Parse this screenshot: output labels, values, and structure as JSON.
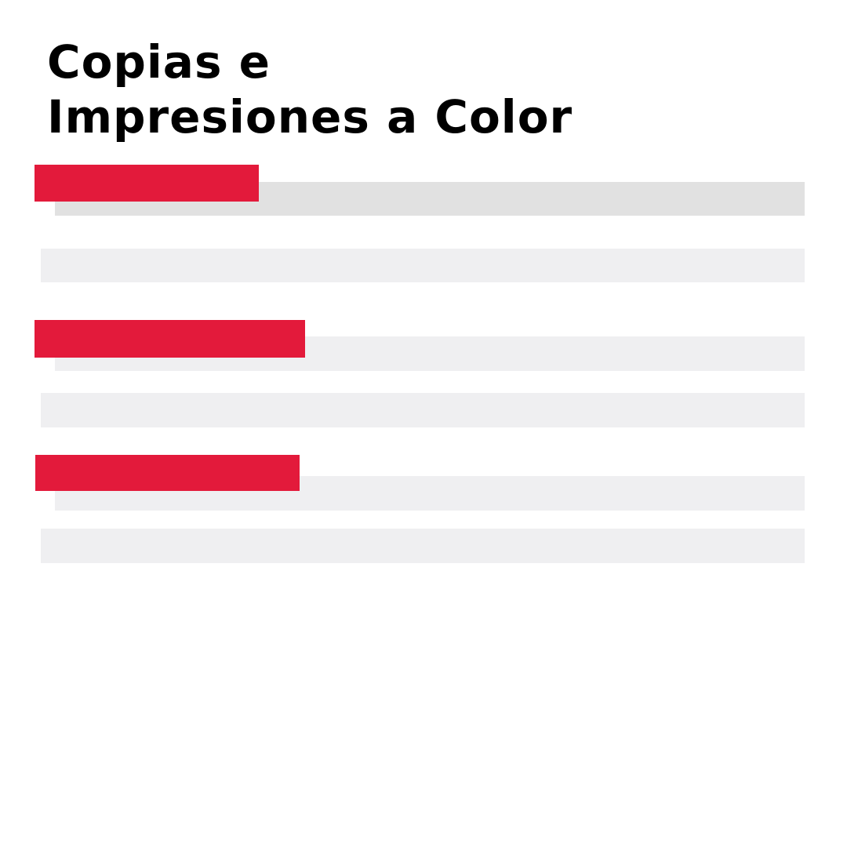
{
  "title": {
    "line1": "Copias e",
    "line2": "Impresiones a Color"
  },
  "colors": {
    "accent": "#e31a3b",
    "band_dark": "#e1e1e1",
    "band_light": "#efeff1",
    "text": "#000000"
  },
  "sections": [
    {
      "name": "section-1",
      "rows": 2
    },
    {
      "name": "section-2",
      "rows": 2
    },
    {
      "name": "section-3",
      "rows": 2
    }
  ]
}
